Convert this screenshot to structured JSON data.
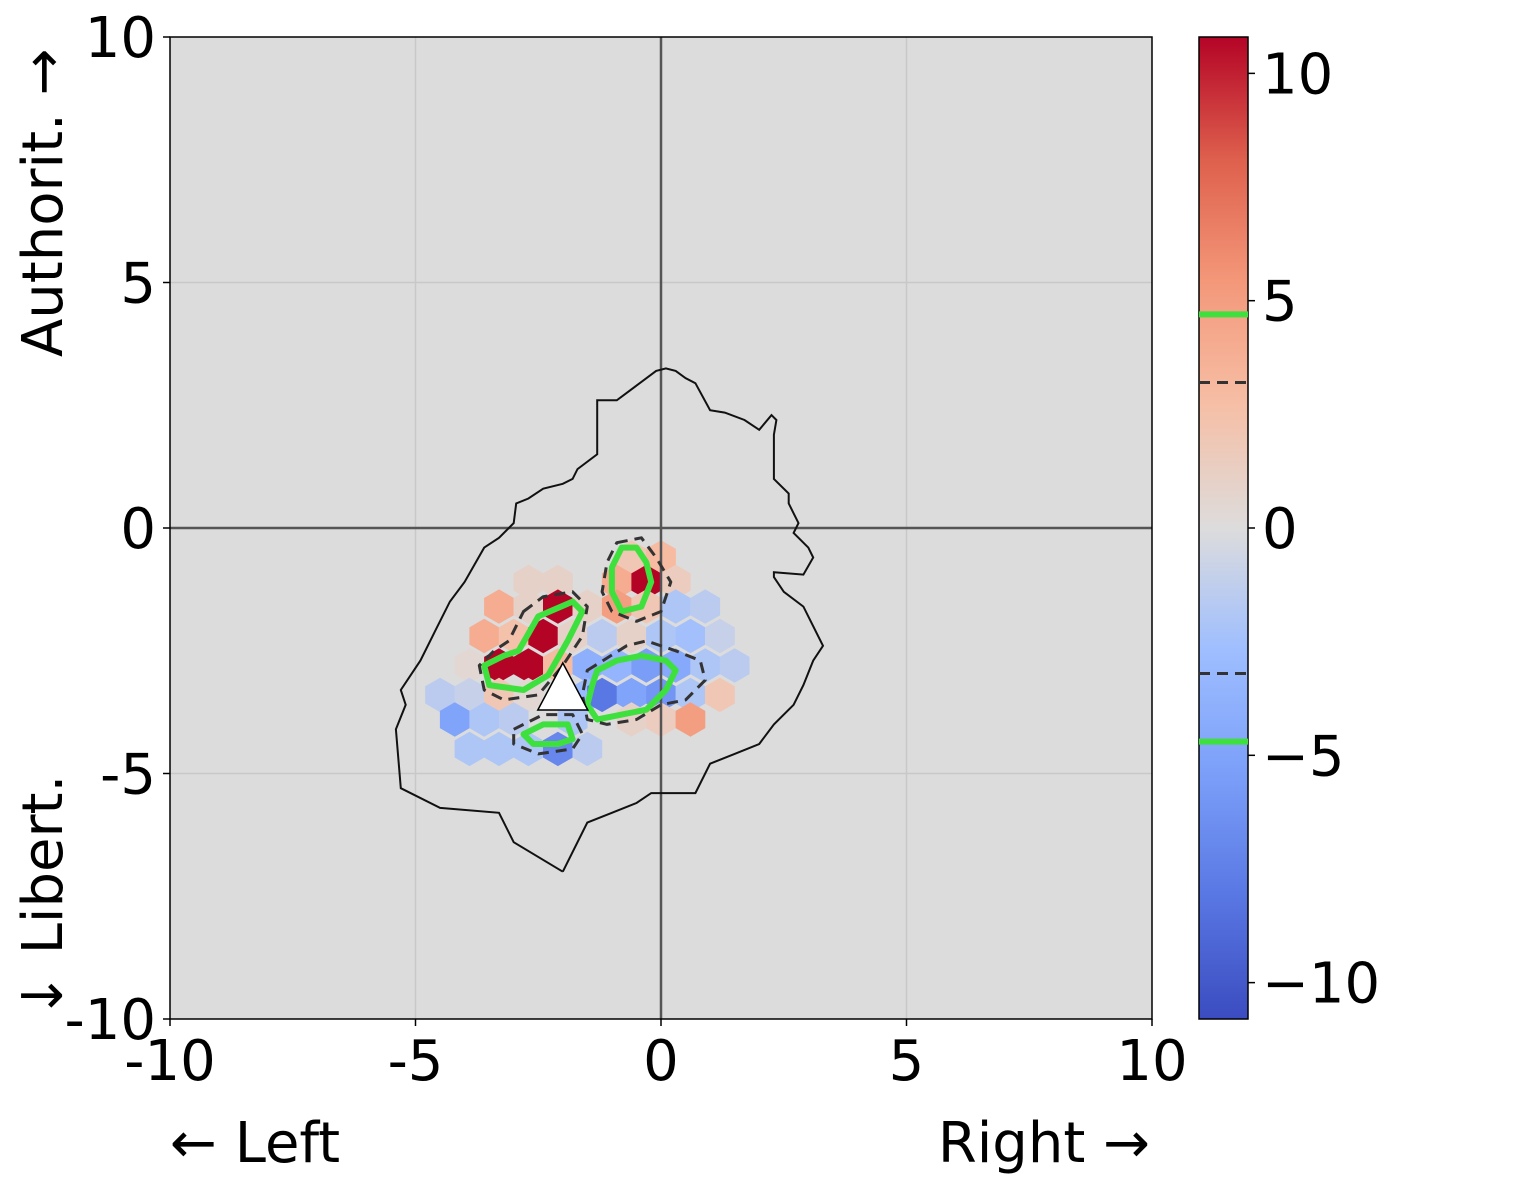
{
  "chart_data": {
    "type": "heatmap",
    "subtype": "hexbin",
    "title": "",
    "xlabel_left": "← Left",
    "xlabel_right": "Right →",
    "ylabel_bottom": "↓ Libert.",
    "ylabel_top": "Authorit. →",
    "xlim": [
      -10,
      10
    ],
    "ylim": [
      -10,
      10
    ],
    "x_ticks": [
      -10,
      -5,
      0,
      5,
      10
    ],
    "x_tick_labels": [
      "-10",
      "-5",
      "0",
      "5",
      "10"
    ],
    "y_ticks": [
      -10,
      -5,
      0,
      5,
      10
    ],
    "y_tick_labels": [
      "-10",
      "-5",
      "0",
      "5",
      "10"
    ],
    "grid": true,
    "background_color": "#dcdcdc",
    "axis_lines_at_zero": true,
    "colormap": "coolwarm",
    "colorbar": {
      "min": -10.8,
      "max": 10.8,
      "ticks": [
        -10,
        -5,
        0,
        5,
        10
      ],
      "tick_labels": [
        "−10",
        "−5",
        "0",
        "5",
        "10"
      ],
      "level_lines": [
        {
          "value": 4.7,
          "style": "solid",
          "color": "#3ee03e"
        },
        {
          "value": 3.2,
          "style": "dashed",
          "color": "#333333"
        },
        {
          "value": -3.2,
          "style": "dashed",
          "color": "#333333"
        },
        {
          "value": -4.7,
          "style": "solid",
          "color": "#3ee03e"
        }
      ]
    },
    "hexbins": [
      {
        "x": -0.6,
        "y": -0.6,
        "v": 2
      },
      {
        "x": 0.0,
        "y": -0.6,
        "v": 3
      },
      {
        "x": -0.9,
        "y": -1.1,
        "v": 4
      },
      {
        "x": -0.3,
        "y": -1.1,
        "v": 10.8
      },
      {
        "x": 0.3,
        "y": -1.1,
        "v": 1.5
      },
      {
        "x": -2.7,
        "y": -1.1,
        "v": 1
      },
      {
        "x": -2.1,
        "y": -1.1,
        "v": 1
      },
      {
        "x": -3.3,
        "y": -1.6,
        "v": 4
      },
      {
        "x": -2.7,
        "y": -1.6,
        "v": 1
      },
      {
        "x": -2.1,
        "y": -1.6,
        "v": 10.8
      },
      {
        "x": -1.5,
        "y": -1.6,
        "v": 1
      },
      {
        "x": -0.9,
        "y": -1.6,
        "v": 5
      },
      {
        "x": -0.3,
        "y": -1.6,
        "v": 2
      },
      {
        "x": 0.3,
        "y": -1.6,
        "v": -2
      },
      {
        "x": 0.9,
        "y": -1.6,
        "v": -1.5
      },
      {
        "x": -3.6,
        "y": -2.2,
        "v": 4
      },
      {
        "x": -3.0,
        "y": -2.2,
        "v": 2.5
      },
      {
        "x": -2.4,
        "y": -2.2,
        "v": 10.8
      },
      {
        "x": -1.8,
        "y": -2.2,
        "v": 1
      },
      {
        "x": -1.2,
        "y": -2.2,
        "v": -1.5
      },
      {
        "x": -0.6,
        "y": -2.2,
        "v": 1
      },
      {
        "x": 0.0,
        "y": -2.2,
        "v": -2
      },
      {
        "x": 0.6,
        "y": -2.2,
        "v": -2.5
      },
      {
        "x": 1.2,
        "y": -2.2,
        "v": -1
      },
      {
        "x": -3.9,
        "y": -2.8,
        "v": 0.5
      },
      {
        "x": -3.3,
        "y": -2.8,
        "v": 10.8
      },
      {
        "x": -2.7,
        "y": -2.8,
        "v": 10.8
      },
      {
        "x": -2.1,
        "y": -2.8,
        "v": 3
      },
      {
        "x": -1.5,
        "y": -2.8,
        "v": -4
      },
      {
        "x": -0.9,
        "y": -2.8,
        "v": -3.5
      },
      {
        "x": -0.3,
        "y": -2.8,
        "v": -5.5
      },
      {
        "x": 0.3,
        "y": -2.8,
        "v": -4.5
      },
      {
        "x": 0.9,
        "y": -2.8,
        "v": -2
      },
      {
        "x": 1.5,
        "y": -2.8,
        "v": -1.5
      },
      {
        "x": -4.5,
        "y": -3.4,
        "v": -1.5
      },
      {
        "x": -3.9,
        "y": -3.4,
        "v": -1
      },
      {
        "x": -3.3,
        "y": -3.4,
        "v": 2
      },
      {
        "x": -2.7,
        "y": -3.4,
        "v": 0.5
      },
      {
        "x": -1.5,
        "y": -3.4,
        "v": -3
      },
      {
        "x": -1.2,
        "y": -3.4,
        "v": -8
      },
      {
        "x": -0.6,
        "y": -3.4,
        "v": -5
      },
      {
        "x": 0.0,
        "y": -3.4,
        "v": -6
      },
      {
        "x": 0.6,
        "y": -3.4,
        "v": -2
      },
      {
        "x": 1.2,
        "y": -3.4,
        "v": 2
      },
      {
        "x": -4.2,
        "y": -3.9,
        "v": -5
      },
      {
        "x": -3.6,
        "y": -3.9,
        "v": -2
      },
      {
        "x": -3.0,
        "y": -3.9,
        "v": -1.5
      },
      {
        "x": -1.8,
        "y": -3.9,
        "v": -2
      },
      {
        "x": -0.6,
        "y": -3.9,
        "v": 1
      },
      {
        "x": 0.0,
        "y": -3.9,
        "v": 1.5
      },
      {
        "x": 0.6,
        "y": -3.9,
        "v": 5
      },
      {
        "x": -3.9,
        "y": -4.5,
        "v": -2
      },
      {
        "x": -3.3,
        "y": -4.5,
        "v": -2
      },
      {
        "x": -2.7,
        "y": -4.5,
        "v": -2
      },
      {
        "x": -2.1,
        "y": -4.5,
        "v": -7
      },
      {
        "x": -1.5,
        "y": -4.5,
        "v": -1.5
      }
    ],
    "marker": {
      "shape": "triangle",
      "x": -2.0,
      "y": -3.3,
      "fill": "#ffffff",
      "stroke": "#000000"
    },
    "outline_polygon": [
      [
        -2.0,
        -7.0
      ],
      [
        -1.5,
        -6.0
      ],
      [
        -1.0,
        -5.8
      ],
      [
        -0.5,
        -5.6
      ],
      [
        -0.2,
        -5.4
      ],
      [
        0.0,
        -5.4
      ],
      [
        0.7,
        -5.4
      ],
      [
        1.0,
        -4.8
      ],
      [
        1.5,
        -4.6
      ],
      [
        2.0,
        -4.4
      ],
      [
        2.3,
        -4.0
      ],
      [
        2.7,
        -3.6
      ],
      [
        2.9,
        -3.2
      ],
      [
        3.1,
        -2.7
      ],
      [
        3.3,
        -2.4
      ],
      [
        3.1,
        -2.0
      ],
      [
        2.9,
        -1.6
      ],
      [
        2.5,
        -1.3
      ],
      [
        2.3,
        -1.0
      ],
      [
        2.3,
        -0.9
      ],
      [
        2.9,
        -0.95
      ],
      [
        3.1,
        -0.6
      ],
      [
        3.0,
        -0.4
      ],
      [
        2.7,
        -0.1
      ],
      [
        2.8,
        0.1
      ],
      [
        2.7,
        0.3
      ],
      [
        2.6,
        0.5
      ],
      [
        2.6,
        0.7
      ],
      [
        2.3,
        1.0
      ],
      [
        2.3,
        1.4
      ],
      [
        2.3,
        1.9
      ],
      [
        2.35,
        2.2
      ],
      [
        2.25,
        2.3
      ],
      [
        2.0,
        2.0
      ],
      [
        1.7,
        2.2
      ],
      [
        1.3,
        2.35
      ],
      [
        1.0,
        2.4
      ],
      [
        0.7,
        2.95
      ],
      [
        0.5,
        3.05
      ],
      [
        0.3,
        3.2
      ],
      [
        0.1,
        3.25
      ],
      [
        -0.1,
        3.2
      ],
      [
        -0.5,
        2.9
      ],
      [
        -0.9,
        2.6
      ],
      [
        -1.3,
        2.6
      ],
      [
        -1.3,
        1.9
      ],
      [
        -1.3,
        1.5
      ],
      [
        -1.7,
        1.2
      ],
      [
        -1.8,
        1.0
      ],
      [
        -2.0,
        0.9
      ],
      [
        -2.4,
        0.8
      ],
      [
        -2.7,
        0.6
      ],
      [
        -2.95,
        0.5
      ],
      [
        -3.0,
        0.1
      ],
      [
        -3.3,
        -0.2
      ],
      [
        -3.6,
        -0.4
      ],
      [
        -4.0,
        -1.1
      ],
      [
        -4.3,
        -1.5
      ],
      [
        -4.6,
        -2.1
      ],
      [
        -4.9,
        -2.7
      ],
      [
        -5.3,
        -3.3
      ],
      [
        -5.2,
        -3.6
      ],
      [
        -5.4,
        -4.1
      ],
      [
        -5.3,
        -5.3
      ],
      [
        -4.5,
        -5.7
      ],
      [
        -3.3,
        -5.8
      ],
      [
        -3.0,
        -6.4
      ],
      [
        -2.0,
        -7.0
      ]
    ],
    "contours": [
      {
        "style": "solid",
        "color": "#3ee03e",
        "points": [
          [
            -0.8,
            -0.4
          ],
          [
            -0.5,
            -0.4
          ],
          [
            -0.3,
            -0.7
          ],
          [
            -0.2,
            -1.1
          ],
          [
            -0.4,
            -1.6
          ],
          [
            -0.8,
            -1.7
          ],
          [
            -1.0,
            -1.3
          ],
          [
            -1.0,
            -0.8
          ]
        ]
      },
      {
        "style": "dashed",
        "color": "#333333",
        "points": [
          [
            -0.9,
            -0.3
          ],
          [
            -0.4,
            -0.2
          ],
          [
            -0.1,
            -0.6
          ],
          [
            0.2,
            -1.1
          ],
          [
            0.0,
            -1.7
          ],
          [
            -0.5,
            -1.9
          ],
          [
            -1.0,
            -1.7
          ],
          [
            -1.2,
            -1.3
          ],
          [
            -1.1,
            -0.7
          ]
        ]
      },
      {
        "style": "solid",
        "color": "#3ee03e",
        "points": [
          [
            -2.5,
            -1.8
          ],
          [
            -1.8,
            -1.5
          ],
          [
            -1.6,
            -1.7
          ],
          [
            -1.9,
            -2.3
          ],
          [
            -2.3,
            -3.0
          ],
          [
            -2.8,
            -3.3
          ],
          [
            -3.5,
            -3.2
          ],
          [
            -3.6,
            -2.8
          ],
          [
            -3.2,
            -2.6
          ],
          [
            -2.9,
            -2.5
          ]
        ]
      },
      {
        "style": "dashed",
        "color": "#333333",
        "points": [
          [
            -2.8,
            -1.7
          ],
          [
            -2.4,
            -1.4
          ],
          [
            -1.8,
            -1.3
          ],
          [
            -1.5,
            -1.6
          ],
          [
            -1.6,
            -2.2
          ],
          [
            -2.0,
            -2.8
          ],
          [
            -2.5,
            -3.4
          ],
          [
            -3.2,
            -3.5
          ],
          [
            -3.6,
            -3.3
          ],
          [
            -3.7,
            -2.8
          ],
          [
            -3.4,
            -2.5
          ],
          [
            -3.1,
            -2.3
          ]
        ]
      },
      {
        "style": "solid",
        "color": "#3ee03e",
        "points": [
          [
            -1.3,
            -2.9
          ],
          [
            -0.9,
            -2.7
          ],
          [
            -0.4,
            -2.6
          ],
          [
            0.1,
            -2.7
          ],
          [
            0.3,
            -2.9
          ],
          [
            0.1,
            -3.3
          ],
          [
            -0.3,
            -3.7
          ],
          [
            -0.8,
            -3.8
          ],
          [
            -1.3,
            -3.9
          ],
          [
            -1.5,
            -3.6
          ],
          [
            -1.4,
            -3.2
          ]
        ]
      },
      {
        "style": "dashed",
        "color": "#333333",
        "points": [
          [
            -1.5,
            -2.9
          ],
          [
            -0.7,
            -2.4
          ],
          [
            -0.3,
            -2.3
          ],
          [
            0.3,
            -2.5
          ],
          [
            0.8,
            -2.7
          ],
          [
            0.9,
            -3.1
          ],
          [
            0.5,
            -3.5
          ],
          [
            0.0,
            -3.6
          ],
          [
            -0.5,
            -3.9
          ],
          [
            -1.1,
            -4.0
          ],
          [
            -1.5,
            -3.9
          ],
          [
            -1.6,
            -3.4
          ]
        ]
      },
      {
        "style": "solid",
        "color": "#3ee03e",
        "points": [
          [
            -2.8,
            -4.2
          ],
          [
            -2.4,
            -4.0
          ],
          [
            -1.9,
            -4.0
          ],
          [
            -1.8,
            -4.3
          ],
          [
            -2.1,
            -4.4
          ],
          [
            -2.6,
            -4.4
          ]
        ]
      },
      {
        "style": "dashed",
        "color": "#333333",
        "points": [
          [
            -3.0,
            -4.1
          ],
          [
            -2.4,
            -3.8
          ],
          [
            -1.8,
            -3.8
          ],
          [
            -1.6,
            -4.2
          ],
          [
            -1.8,
            -4.5
          ],
          [
            -2.5,
            -4.6
          ],
          [
            -3.0,
            -4.4
          ]
        ]
      }
    ]
  }
}
